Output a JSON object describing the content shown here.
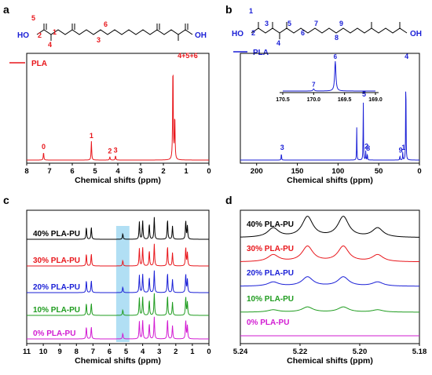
{
  "panels": {
    "a": {
      "label": "a",
      "legend": "PLA"
    },
    "b": {
      "label": "b",
      "legend": "PLA"
    },
    "c": {
      "label": "c"
    },
    "d": {
      "label": "d"
    }
  },
  "structure_a": {
    "left": "HO",
    "right": "OH",
    "numbers": [
      "5",
      "2",
      "1",
      "4",
      "3",
      "6"
    ]
  },
  "structure_b": {
    "left": "HO",
    "right": "OH",
    "numbers": [
      "1",
      "2",
      "3",
      "4",
      "5",
      "6",
      "7",
      "8",
      "9"
    ]
  },
  "chart_data": [
    {
      "id": "a",
      "type": "line",
      "title": "",
      "xlabel": "Chemical shifts (ppm)",
      "ylabel": "",
      "xlim": [
        8,
        0
      ],
      "xticks": [
        "8",
        "7",
        "6",
        "5",
        "4",
        "3",
        "2",
        "1",
        "0"
      ],
      "color": "#e8161b",
      "series": [
        {
          "name": "PLA"
        }
      ],
      "peaks": [
        {
          "x": 7.26,
          "h": 0.08,
          "label": "0"
        },
        {
          "x": 5.16,
          "h": 0.19,
          "label": "1"
        },
        {
          "x": 4.35,
          "h": 0.035,
          "label": "2"
        },
        {
          "x": 4.1,
          "h": 0.045,
          "label": "3"
        },
        {
          "x": 1.58,
          "h": 1.0,
          "label": "4+5+6"
        },
        {
          "x": 1.5,
          "h": 0.45,
          "label": ""
        }
      ]
    },
    {
      "id": "b",
      "type": "line",
      "title": "",
      "xlabel": "Chemical shifts (ppm)",
      "ylabel": "",
      "xlim": [
        220,
        0
      ],
      "xticks": [
        "200",
        "150",
        "100",
        "50",
        "0"
      ],
      "color": "#1a1fd6",
      "series": [
        {
          "name": "PLA"
        }
      ],
      "peaks": [
        {
          "x": 169.6,
          "h": 0.08,
          "label": "3"
        },
        {
          "x": 77.0,
          "h": 0.33,
          "label": ""
        },
        {
          "x": 69.0,
          "h": 0.62,
          "label": "5"
        },
        {
          "x": 66.0,
          "h": 0.09,
          "label": "2"
        },
        {
          "x": 64.0,
          "h": 0.07,
          "label": "8"
        },
        {
          "x": 20.5,
          "h": 0.08,
          "label": "1"
        },
        {
          "x": 16.7,
          "h": 1.0,
          "label": "4"
        },
        {
          "x": 24.0,
          "h": 0.05,
          "label": "9"
        }
      ],
      "inset": {
        "xlim": [
          170.5,
          169.0
        ],
        "xticks": [
          "170.5",
          "170.0",
          "169.5",
          "169.0"
        ],
        "peaks": [
          {
            "x": 170.0,
            "h": 0.07,
            "label": "7"
          },
          {
            "x": 169.65,
            "h": 1.0,
            "label": "6"
          }
        ]
      }
    },
    {
      "id": "c",
      "type": "line",
      "title": "",
      "xlabel": "Chemical shifts (ppm)",
      "ylabel": "",
      "xlim": [
        11,
        0
      ],
      "xticks": [
        "11",
        "10",
        "9",
        "8",
        "7",
        "6",
        "5",
        "4",
        "3",
        "2",
        "1",
        "0"
      ],
      "highlight": [
        5.6,
        4.8
      ],
      "series": [
        {
          "name": "40% PLA-PU",
          "color": "#000000"
        },
        {
          "name": "30% PLA-PU",
          "color": "#e8161b"
        },
        {
          "name": "20% PLA-PU",
          "color": "#1a1fd6"
        },
        {
          "name": "10% PLA-PU",
          "color": "#1f9c1f"
        },
        {
          "name": "0% PLA-PU",
          "color": "#d21bd2"
        }
      ],
      "peaks": [
        {
          "x": 7.4,
          "h": 0.55
        },
        {
          "x": 7.1,
          "h": 0.55
        },
        {
          "x": 5.2,
          "h": 0.25
        },
        {
          "x": 4.2,
          "h": 0.8
        },
        {
          "x": 4.0,
          "h": 0.85
        },
        {
          "x": 3.6,
          "h": 0.7
        },
        {
          "x": 3.3,
          "h": 1.0
        },
        {
          "x": 2.5,
          "h": 0.9
        },
        {
          "x": 2.2,
          "h": 0.6
        },
        {
          "x": 1.4,
          "h": 0.85
        },
        {
          "x": 1.3,
          "h": 0.6
        }
      ]
    },
    {
      "id": "d",
      "type": "line",
      "title": "",
      "xlabel": "Chemical shifts (ppm)",
      "ylabel": "",
      "xlim": [
        5.24,
        5.18
      ],
      "xticks": [
        "5.24",
        "5.22",
        "5.20",
        "5.18"
      ],
      "series": [
        {
          "name": "40% PLA-PU",
          "color": "#000000",
          "scale": 1.0
        },
        {
          "name": "30% PLA-PU",
          "color": "#e8161b",
          "scale": 0.75
        },
        {
          "name": "20% PLA-PU",
          "color": "#1a1fd6",
          "scale": 0.45
        },
        {
          "name": "10% PLA-PU",
          "color": "#1f9c1f",
          "scale": 0.25
        },
        {
          "name": "0% PLA-PU",
          "color": "#d21bd2",
          "scale": 0.0
        }
      ],
      "peaks": [
        {
          "x": 5.229,
          "h": 0.45,
          "w": 0.0022
        },
        {
          "x": 5.2175,
          "h": 1.0,
          "w": 0.0022
        },
        {
          "x": 5.2055,
          "h": 1.0,
          "w": 0.0022
        },
        {
          "x": 5.194,
          "h": 0.45,
          "w": 0.0022
        }
      ]
    }
  ]
}
